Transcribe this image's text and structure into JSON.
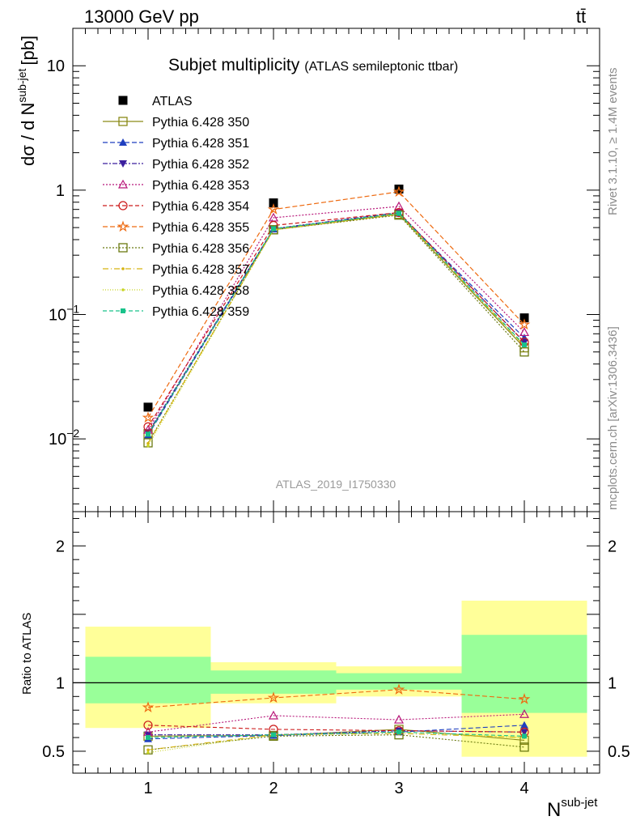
{
  "header": {
    "left": "13000 GeV pp",
    "right": "tt̄"
  },
  "side_labels": {
    "rivet": "Rivet 3.1.10, ≥ 1.4M events",
    "mcplots": "mcplots.cern.ch [arXiv:1306.3436]"
  },
  "chart_data": [
    {
      "type": "line",
      "title": "Subjet multiplicity",
      "subtitle": "(ATLAS semileptonic ttbar)",
      "ylabel_main": "dσ / d N",
      "ylabel_sup": "sub-jet",
      "ylabel_unit": "[pb]",
      "xlabel_main": "N",
      "xlabel_sup": "sub-jet",
      "watermark": "ATLAS_2019_I1750330",
      "y_scale": "log",
      "ylim": [
        0.0026,
        20
      ],
      "xlim": [
        0.4,
        4.6
      ],
      "x": [
        1,
        2,
        3,
        4
      ],
      "y_ticks": [
        {
          "value": 10,
          "base": "10",
          "exp": ""
        },
        {
          "value": 1,
          "base": "1",
          "exp": ""
        },
        {
          "value": 0.1,
          "base": "10",
          "exp": "−1"
        },
        {
          "value": 0.01,
          "base": "10",
          "exp": "−2"
        }
      ],
      "series": [
        {
          "name": "ATLAS",
          "color": "#000000",
          "marker": "square-filled",
          "dash": "",
          "values": [
            0.018,
            0.79,
            1.02,
            0.094
          ]
        },
        {
          "name": "Pythia 6.428 350",
          "color": "#8a8a18",
          "marker": "square-open",
          "dash": "",
          "values": [
            0.011,
            0.48,
            0.64,
            0.054
          ]
        },
        {
          "name": "Pythia 6.428 351",
          "color": "#1f3fbf",
          "marker": "triangle-up",
          "dash": "6,3",
          "values": [
            0.0107,
            0.485,
            0.65,
            0.065
          ]
        },
        {
          "name": "Pythia 6.428 352",
          "color": "#3b1f9e",
          "marker": "triangle-down",
          "dash": "6,2,2,2",
          "values": [
            0.0112,
            0.49,
            0.66,
            0.06
          ]
        },
        {
          "name": "Pythia 6.428 353",
          "color": "#b8187a",
          "marker": "triangle-open",
          "dash": "2,2",
          "values": [
            0.0118,
            0.6,
            0.74,
            0.072
          ]
        },
        {
          "name": "Pythia 6.428 354",
          "color": "#cc1a1a",
          "marker": "circle-open",
          "dash": "5,3",
          "values": [
            0.0125,
            0.52,
            0.66,
            0.06
          ]
        },
        {
          "name": "Pythia 6.428 355",
          "color": "#ee6a10",
          "marker": "star-open",
          "dash": "6,3",
          "values": [
            0.0148,
            0.7,
            0.97,
            0.083
          ]
        },
        {
          "name": "Pythia 6.428 356",
          "color": "#6b7a10",
          "marker": "square-open",
          "dash": "2,2",
          "values": [
            0.0093,
            0.48,
            0.63,
            0.05
          ]
        },
        {
          "name": "Pythia 6.428 357",
          "color": "#d6b410",
          "marker": "small-point",
          "dash": "7,3,1,3",
          "values": [
            0.0092,
            0.48,
            0.64,
            0.056
          ]
        },
        {
          "name": "Pythia 6.428 358",
          "color": "#c8d422",
          "marker": "small-point",
          "dash": "1,2",
          "values": [
            0.0088,
            0.48,
            0.65,
            0.056
          ]
        },
        {
          "name": "Pythia 6.428 359",
          "color": "#19c28a",
          "marker": "small-square",
          "dash": "5,3",
          "values": [
            0.0109,
            0.49,
            0.65,
            0.057
          ]
        }
      ]
    },
    {
      "type": "line",
      "ylabel": "Ratio to ATLAS",
      "ylim": [
        0.34,
        2.25
      ],
      "y_ticks": [
        0.5,
        1,
        2
      ],
      "x": [
        1,
        2,
        3,
        4
      ],
      "reference_line": 1,
      "bands": [
        {
          "x_from": 0.5,
          "x_to": 1.5,
          "yellow": [
            0.67,
            1.41
          ],
          "green": [
            0.85,
            1.19
          ]
        },
        {
          "x_from": 1.5,
          "x_to": 2.5,
          "yellow": [
            0.85,
            1.15
          ],
          "green": [
            0.92,
            1.09
          ]
        },
        {
          "x_from": 2.5,
          "x_to": 3.5,
          "yellow": [
            0.9,
            1.12
          ],
          "green": [
            0.95,
            1.07
          ]
        },
        {
          "x_from": 3.5,
          "x_to": 4.5,
          "yellow": [
            0.46,
            1.6
          ],
          "green": [
            0.78,
            1.35
          ]
        }
      ],
      "band_colors": {
        "yellow": "#ffff99",
        "green": "#99ff99"
      },
      "series": [
        {
          "name": "Pythia 6.428 350",
          "color": "#8a8a18",
          "marker": "square-open",
          "dash": "",
          "values": [
            0.61,
            0.615,
            0.66,
            0.58
          ]
        },
        {
          "name": "Pythia 6.428 351",
          "color": "#1f3fbf",
          "marker": "triangle-up",
          "dash": "6,3",
          "values": [
            0.59,
            0.615,
            0.64,
            0.69
          ]
        },
        {
          "name": "Pythia 6.428 352",
          "color": "#3b1f9e",
          "marker": "triangle-down",
          "dash": "6,2,2,2",
          "values": [
            0.62,
            0.62,
            0.65,
            0.64
          ]
        },
        {
          "name": "Pythia 6.428 353",
          "color": "#b8187a",
          "marker": "triangle-open",
          "dash": "2,2",
          "values": [
            0.64,
            0.76,
            0.73,
            0.77
          ]
        },
        {
          "name": "Pythia 6.428 354",
          "color": "#cc1a1a",
          "marker": "circle-open",
          "dash": "5,3",
          "values": [
            0.69,
            0.66,
            0.65,
            0.64
          ]
        },
        {
          "name": "Pythia 6.428 355",
          "color": "#ee6a10",
          "marker": "star-open",
          "dash": "6,3",
          "values": [
            0.82,
            0.89,
            0.95,
            0.88
          ]
        },
        {
          "name": "Pythia 6.428 356",
          "color": "#6b7a10",
          "marker": "square-open",
          "dash": "2,2",
          "values": [
            0.51,
            0.61,
            0.62,
            0.53
          ]
        },
        {
          "name": "Pythia 6.428 357",
          "color": "#d6b410",
          "marker": "small-point",
          "dash": "7,3,1,3",
          "values": [
            0.51,
            0.62,
            0.63,
            0.6
          ]
        },
        {
          "name": "Pythia 6.428 358",
          "color": "#c8d422",
          "marker": "small-point",
          "dash": "1,2",
          "values": [
            0.49,
            0.62,
            0.64,
            0.6
          ]
        },
        {
          "name": "Pythia 6.428 359",
          "color": "#19c28a",
          "marker": "small-square",
          "dash": "5,3",
          "values": [
            0.6,
            0.62,
            0.64,
            0.61
          ]
        }
      ]
    }
  ],
  "x_tick_labels": [
    "1",
    "2",
    "3",
    "4"
  ]
}
